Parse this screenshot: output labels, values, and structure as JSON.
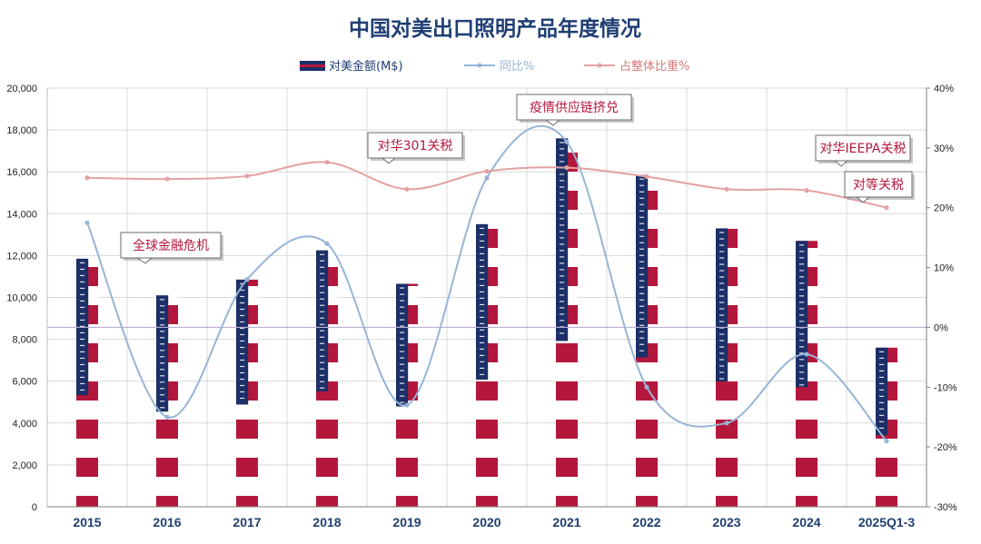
{
  "chart_data": {
    "type": "bar",
    "title": "中国对美出口照明产品年度情况",
    "categories": [
      "2015",
      "2016",
      "2017",
      "2018",
      "2019",
      "2020",
      "2021",
      "2022",
      "2023",
      "2024",
      "2025Q1-3"
    ],
    "series": [
      {
        "name": "对美金额(M$)",
        "type": "bar",
        "axis": "left",
        "values": [
          11850,
          10100,
          10850,
          12250,
          10650,
          13500,
          17600,
          15850,
          13300,
          12700,
          7600
        ]
      },
      {
        "name": "同比%",
        "type": "line",
        "axis": "right",
        "values": [
          17.5,
          -15,
          8,
          14,
          -13,
          25,
          31,
          -10,
          -16,
          -4.5,
          -19
        ]
      },
      {
        "name": "占整体比重%",
        "type": "line",
        "axis": "right",
        "values": [
          25,
          24.8,
          25.3,
          27.6,
          23.1,
          26.1,
          26.7,
          25.2,
          23.1,
          22.9,
          20
        ]
      }
    ],
    "y_left": {
      "min": 0,
      "max": 20000,
      "ticks": [
        "0",
        "2,000",
        "4,000",
        "6,000",
        "8,000",
        "10,000",
        "12,000",
        "14,000",
        "16,000",
        "18,000",
        "20,000"
      ]
    },
    "y_right": {
      "min": -30,
      "max": 40,
      "ticks": [
        "-30%",
        "-20%",
        "-10%",
        "0%",
        "10%",
        "20%",
        "30%",
        "40%"
      ]
    },
    "grid": true,
    "legend_position": "top",
    "annotations": [
      {
        "text": "全球金融危机",
        "category": "2016"
      },
      {
        "text": "对华301关税",
        "category": "2019"
      },
      {
        "text": "疫情供应链挤兑",
        "category": "2021"
      },
      {
        "text": "对华IEEPA关税",
        "category": "2025Q1-3"
      },
      {
        "text": "对等关税",
        "category": "2025Q1-3"
      }
    ],
    "colors": {
      "bar_red": "#b3173c",
      "bar_blue": "#1c2f66",
      "line_yoy": "#97b5d6",
      "line_share": "#e3a2a2",
      "title": "#1f3e73",
      "axis_text": "#222222",
      "zero_line": "#bcaed0",
      "callout_text": "#b3173c"
    }
  }
}
